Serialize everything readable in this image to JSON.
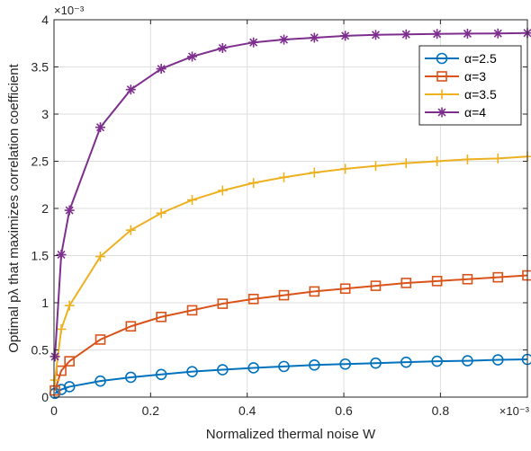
{
  "chart_data": {
    "type": "line",
    "xlabel": "Normalized thermal noise W",
    "ylabel": "Optimal pλ that maximizes correlation coefficient",
    "x_exponent": "×10⁻³",
    "y_exponent": "×10⁻³",
    "xlim": [
      0,
      0.98
    ],
    "ylim": [
      0,
      4
    ],
    "xticks": [
      0,
      0.2,
      0.4,
      0.6,
      0.8
    ],
    "xtick_labels": [
      "0",
      "0.2",
      "0.4",
      "0.6",
      "0.8"
    ],
    "yticks": [
      0,
      0.5,
      1,
      1.5,
      2,
      2.5,
      3,
      3.5,
      4
    ],
    "ytick_labels": [
      "0",
      "0.5",
      "1",
      "1.5",
      "2",
      "2.5",
      "3",
      "3.5",
      "4"
    ],
    "grid": true,
    "legend_position": "top-right",
    "x": [
      0.002,
      0.015,
      0.032,
      0.096,
      0.159,
      0.222,
      0.286,
      0.349,
      0.413,
      0.476,
      0.539,
      0.603,
      0.666,
      0.729,
      0.793,
      0.856,
      0.919,
      0.98
    ],
    "series": [
      {
        "name": "α=2.5",
        "color": "#0072BD",
        "marker": "circle",
        "values": [
          0.04,
          0.08,
          0.11,
          0.17,
          0.21,
          0.24,
          0.27,
          0.29,
          0.31,
          0.325,
          0.34,
          0.35,
          0.36,
          0.37,
          0.38,
          0.385,
          0.395,
          0.4
        ]
      },
      {
        "name": "α=3",
        "color": "#D95319",
        "marker": "square",
        "values": [
          0.07,
          0.28,
          0.38,
          0.61,
          0.75,
          0.85,
          0.92,
          0.99,
          1.04,
          1.08,
          1.12,
          1.15,
          1.18,
          1.21,
          1.23,
          1.25,
          1.27,
          1.29
        ]
      },
      {
        "name": "α=3.5",
        "color": "#EDB120",
        "marker": "plus",
        "values": [
          0.18,
          0.72,
          0.97,
          1.49,
          1.77,
          1.95,
          2.09,
          2.19,
          2.27,
          2.33,
          2.38,
          2.42,
          2.45,
          2.48,
          2.5,
          2.52,
          2.53,
          2.55
        ]
      },
      {
        "name": "α=4",
        "color": "#7E2F8E",
        "marker": "asterisk",
        "values": [
          0.43,
          1.51,
          1.98,
          2.86,
          3.26,
          3.48,
          3.61,
          3.7,
          3.76,
          3.79,
          3.81,
          3.83,
          3.84,
          3.845,
          3.85,
          3.853,
          3.855,
          3.86
        ]
      }
    ]
  }
}
